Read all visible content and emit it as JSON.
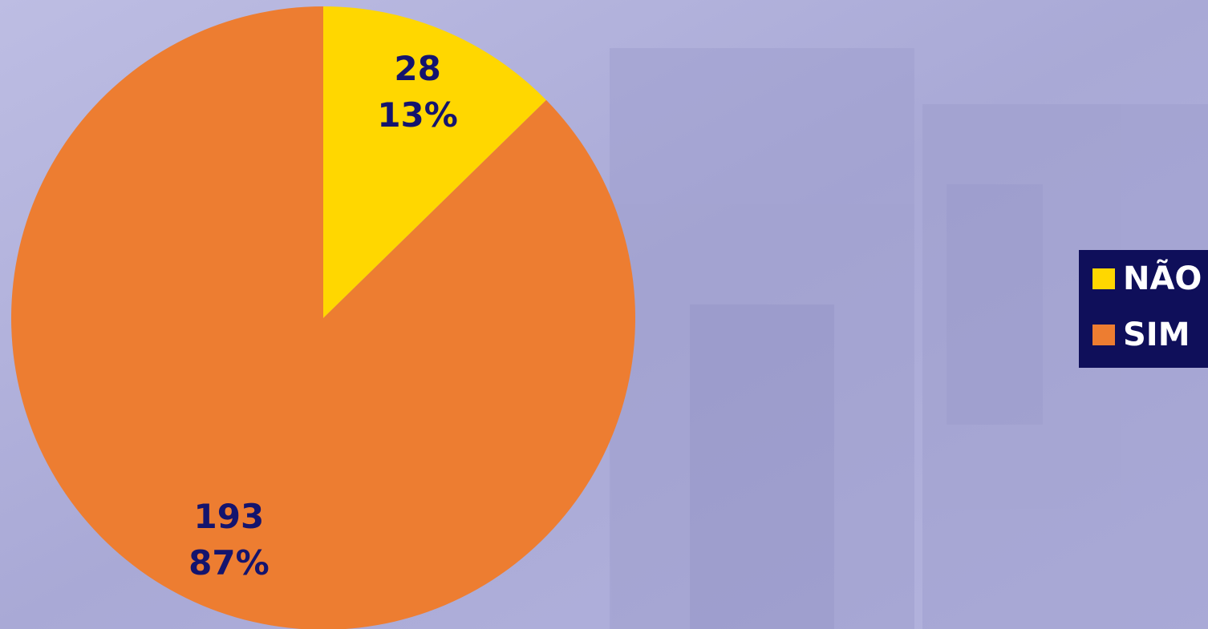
{
  "chart_data": {
    "type": "pie",
    "categories": [
      "NÃO",
      "SIM"
    ],
    "values": [
      28,
      193
    ],
    "colors": [
      "#ffd700",
      "#ed7d31"
    ],
    "percent": {
      "values": [
        13,
        87
      ],
      "value_labels": [
        "13%",
        "87%"
      ]
    },
    "legend": "right"
  }
}
